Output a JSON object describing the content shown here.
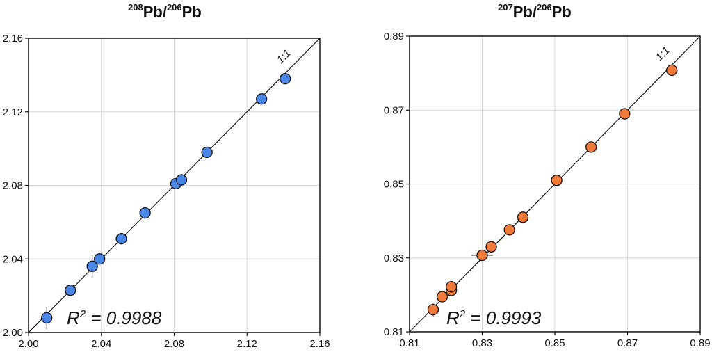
{
  "chart_data": [
    {
      "type": "scatter",
      "title_mass_top": "208",
      "title_mass_bottom": "206",
      "title_element": "Pb",
      "xlim": [
        2.0,
        2.16
      ],
      "ylim": [
        2.0,
        2.16
      ],
      "xticks": [
        "2.00",
        "2.04",
        "2.08",
        "2.12",
        "2.16"
      ],
      "yticks": [
        "2.00",
        "2.04",
        "2.08",
        "2.12",
        "2.16"
      ],
      "tick_values": [
        2.0,
        2.04,
        2.08,
        2.12,
        2.16
      ],
      "grid": true,
      "reference_line_label": "1:1",
      "r2_label": "R",
      "r2_exp": "2",
      "r2_value": " = 0.9988",
      "marker_color": "#4a86e8",
      "points": [
        {
          "x": 2.01,
          "y": 2.008,
          "ey": 0.006
        },
        {
          "x": 2.023,
          "y": 2.023,
          "ey": 0.003
        },
        {
          "x": 2.035,
          "y": 2.036,
          "ey": 0.006
        },
        {
          "x": 2.039,
          "y": 2.04,
          "ey": 0.003
        },
        {
          "x": 2.051,
          "y": 2.051,
          "ey": 0.002
        },
        {
          "x": 2.064,
          "y": 2.065,
          "ey": 0.002
        },
        {
          "x": 2.081,
          "y": 2.081,
          "ey": 0.002
        },
        {
          "x": 2.084,
          "y": 2.083,
          "ey": 0.002
        },
        {
          "x": 2.098,
          "y": 2.098,
          "ey": 0.002
        },
        {
          "x": 2.128,
          "y": 2.127,
          "ey": 0.002
        },
        {
          "x": 2.141,
          "y": 2.138,
          "ey": 0.002
        }
      ]
    },
    {
      "type": "scatter",
      "title_mass_top": "207",
      "title_mass_bottom": "206",
      "title_element": "Pb",
      "xlim": [
        0.81,
        0.89
      ],
      "ylim": [
        0.81,
        0.89
      ],
      "xticks": [
        "0.81",
        "0.83",
        "0.85",
        "0.87",
        "0.89"
      ],
      "yticks": [
        "0.81",
        "0.83",
        "0.85",
        "0.87",
        "0.89"
      ],
      "tick_values": [
        0.81,
        0.83,
        0.85,
        0.87,
        0.89
      ],
      "grid": true,
      "reference_line_label": "1:1",
      "r2_label": "R",
      "r2_exp": "2",
      "r2_value": " = 0.9993",
      "marker_color": "#f07a3a",
      "points": [
        {
          "x": 0.8165,
          "y": 0.816,
          "ey": 0.0018,
          "ex": 0.0
        },
        {
          "x": 0.819,
          "y": 0.8195,
          "ey": 0.0006,
          "ex": 0.0
        },
        {
          "x": 0.8215,
          "y": 0.8212,
          "ey": 0.0006,
          "ex": 0.0
        },
        {
          "x": 0.8215,
          "y": 0.8222,
          "ey": 0.0006,
          "ex": 0.0
        },
        {
          "x": 0.83,
          "y": 0.8307,
          "ey": 0.0008,
          "ex": 0.003
        },
        {
          "x": 0.8325,
          "y": 0.833,
          "ey": 0.0006,
          "ex": 0.0
        },
        {
          "x": 0.8375,
          "y": 0.8376,
          "ey": 0.0004,
          "ex": 0.0
        },
        {
          "x": 0.8412,
          "y": 0.841,
          "ey": 0.0004,
          "ex": 0.0
        },
        {
          "x": 0.8505,
          "y": 0.851,
          "ey": 0.0004,
          "ex": 0.0
        },
        {
          "x": 0.86,
          "y": 0.86,
          "ey": 0.0004,
          "ex": 0.0
        },
        {
          "x": 0.8692,
          "y": 0.869,
          "ey": 0.0004,
          "ex": 0.0
        },
        {
          "x": 0.8822,
          "y": 0.8808,
          "ey": 0.0004,
          "ex": 0.0
        }
      ]
    }
  ]
}
